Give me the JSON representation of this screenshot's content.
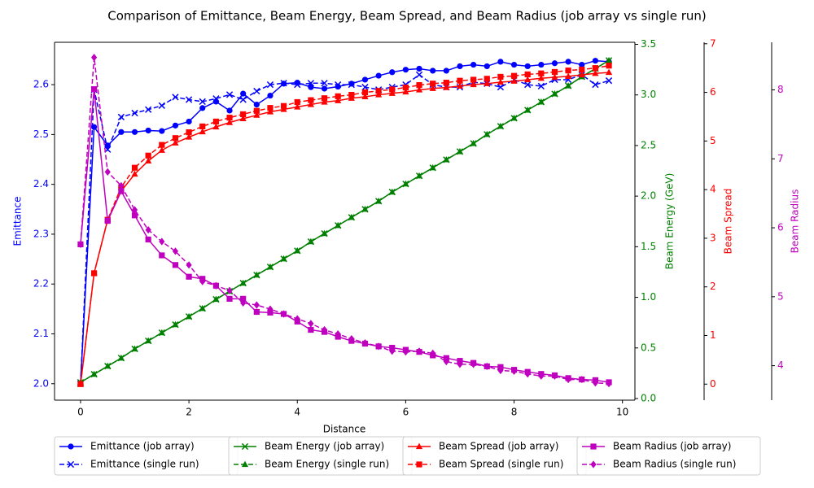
{
  "chart_data": {
    "type": "line",
    "title": "Comparison of Emittance, Beam Energy, Beam Spread, and Beam Radius (job array vs single run)",
    "xlabel": "Distance",
    "ylabel": "Emittance",
    "y2label": "Beam Energy (GeV)",
    "y3label": "Beam Spread",
    "y4label": "Beam Radius",
    "x": [
      0,
      0.25,
      0.5,
      0.75,
      1,
      1.25,
      1.5,
      1.75,
      2,
      2.25,
      2.5,
      2.75,
      3,
      3.25,
      3.5,
      3.75,
      4,
      4.25,
      4.5,
      4.75,
      5,
      5.25,
      5.5,
      5.75,
      6,
      6.25,
      6.5,
      6.75,
      7,
      7.25,
      7.5,
      7.75,
      8,
      8.25,
      8.5,
      8.75,
      9,
      9.25,
      9.5,
      9.75
    ],
    "xlim": [
      -0.48,
      10.23
    ],
    "xticks": [
      0,
      2,
      4,
      6,
      8,
      10
    ],
    "ylim": [
      1.967,
      2.685
    ],
    "yticks": [
      {
        "value": 2,
        "label": "2.0"
      },
      2.1,
      2.2,
      2.3,
      2.4,
      2.5,
      2.6
    ],
    "y2lim": [
      -0.016,
      3.52
    ],
    "y2ticks": [
      {
        "value": 0,
        "label": "0.0"
      },
      0.5,
      {
        "value": 1,
        "label": "1.0"
      },
      1.5,
      {
        "value": 2,
        "label": "2.0"
      },
      2.5,
      {
        "value": 3,
        "label": "3.0"
      },
      3.5
    ],
    "y3lim": [
      -0.33,
      7.03
    ],
    "y3ticks": [
      0,
      1,
      2,
      3,
      4,
      5,
      6,
      7
    ],
    "y4lim": [
      3.5,
      8.69
    ],
    "y4ticks": [
      4,
      5,
      6,
      7,
      8
    ],
    "legend": "lower center",
    "series": [
      {
        "name": "Emittance (job array)",
        "color": "#0000ff",
        "axis": "y",
        "marker": "o",
        "linestyle": "solid",
        "values": [
          2.0,
          2.515,
          2.478,
          2.505,
          2.505,
          2.508,
          2.507,
          2.518,
          2.526,
          2.553,
          2.566,
          2.548,
          2.582,
          2.56,
          2.578,
          2.602,
          2.604,
          2.595,
          2.592,
          2.596,
          2.602,
          2.61,
          2.618,
          2.625,
          2.63,
          2.632,
          2.628,
          2.628,
          2.637,
          2.64,
          2.637,
          2.646,
          2.64,
          2.637,
          2.64,
          2.643,
          2.646,
          2.64,
          2.648,
          2.646
        ]
      },
      {
        "name": "Emittance (single run)",
        "color": "#0000ff",
        "axis": "y",
        "marker": "x",
        "linestyle": "dashed",
        "values": [
          2.0,
          2.59,
          2.47,
          2.535,
          2.543,
          2.55,
          2.558,
          2.575,
          2.57,
          2.566,
          2.572,
          2.58,
          2.57,
          2.587,
          2.6,
          2.603,
          2.6,
          2.603,
          2.603,
          2.6,
          2.6,
          2.595,
          2.59,
          2.595,
          2.6,
          2.62,
          2.6,
          2.595,
          2.595,
          2.605,
          2.602,
          2.595,
          2.61,
          2.6,
          2.597,
          2.61,
          2.61,
          2.62,
          2.6,
          2.608
        ]
      },
      {
        "name": "Beam Energy (job array)",
        "color": "#008000",
        "axis": "y2",
        "marker": "x",
        "linestyle": "solid",
        "values": [
          0.16,
          0.24,
          0.32,
          0.4,
          0.49,
          0.57,
          0.65,
          0.73,
          0.81,
          0.89,
          0.98,
          1.06,
          1.14,
          1.22,
          1.3,
          1.38,
          1.46,
          1.55,
          1.63,
          1.71,
          1.79,
          1.87,
          1.95,
          2.04,
          2.12,
          2.2,
          2.28,
          2.36,
          2.44,
          2.52,
          2.61,
          2.69,
          2.77,
          2.85,
          2.93,
          3.01,
          3.09,
          3.18,
          3.26,
          3.34
        ]
      },
      {
        "name": "Beam Energy (single run)",
        "color": "#008000",
        "axis": "y2",
        "marker": "^",
        "linestyle": "dashed",
        "values": [
          0.16,
          0.24,
          0.32,
          0.4,
          0.49,
          0.57,
          0.65,
          0.73,
          0.81,
          0.89,
          0.98,
          1.06,
          1.14,
          1.22,
          1.3,
          1.38,
          1.46,
          1.55,
          1.63,
          1.71,
          1.79,
          1.87,
          1.95,
          2.04,
          2.12,
          2.2,
          2.28,
          2.36,
          2.44,
          2.52,
          2.61,
          2.69,
          2.77,
          2.85,
          2.93,
          3.01,
          3.09,
          3.18,
          3.26,
          3.34
        ]
      },
      {
        "name": "Beam Spread (job array)",
        "color": "#ff0000",
        "axis": "y3",
        "marker": "^",
        "linestyle": "solid",
        "values": [
          0,
          2.28,
          3.38,
          3.97,
          4.32,
          4.59,
          4.81,
          4.96,
          5.08,
          5.19,
          5.29,
          5.38,
          5.46,
          5.53,
          5.6,
          5.65,
          5.7,
          5.75,
          5.8,
          5.83,
          5.88,
          5.91,
          5.95,
          5.98,
          6.01,
          6.05,
          6.08,
          6.1,
          6.13,
          6.16,
          6.18,
          6.21,
          6.23,
          6.26,
          6.29,
          6.31,
          6.33,
          6.36,
          6.39,
          6.41
        ]
      },
      {
        "name": "Beam Spread (single run)",
        "color": "#ff0000",
        "axis": "y3",
        "marker": "s",
        "linestyle": "dashed",
        "values": [
          0,
          2.28,
          3.38,
          4.05,
          4.45,
          4.7,
          4.92,
          5.06,
          5.18,
          5.3,
          5.4,
          5.48,
          5.55,
          5.62,
          5.68,
          5.72,
          5.8,
          5.84,
          5.88,
          5.92,
          5.95,
          6.0,
          6.03,
          6.06,
          6.1,
          6.15,
          6.18,
          6.2,
          6.24,
          6.26,
          6.28,
          6.32,
          6.34,
          6.37,
          6.39,
          6.42,
          6.45,
          6.47,
          6.5,
          6.55
        ]
      },
      {
        "name": "Beam Radius (job array)",
        "color": "#bf00bf",
        "axis": "y4",
        "marker": "s",
        "linestyle": "solid",
        "values": [
          5.76,
          8.01,
          6.1,
          6.53,
          6.18,
          5.83,
          5.6,
          5.46,
          5.29,
          5.26,
          5.16,
          4.97,
          4.97,
          4.78,
          4.77,
          4.75,
          4.64,
          4.52,
          4.49,
          4.42,
          4.36,
          4.32,
          4.28,
          4.26,
          4.23,
          4.2,
          4.15,
          4.11,
          4.07,
          4.04,
          3.99,
          3.98,
          3.94,
          3.91,
          3.88,
          3.86,
          3.82,
          3.8,
          3.79,
          3.76
        ]
      },
      {
        "name": "Beam Radius (single run)",
        "color": "#bf00bf",
        "axis": "y4",
        "marker": "D",
        "linestyle": "dashed",
        "values": [
          5.76,
          8.47,
          6.81,
          6.61,
          6.26,
          5.97,
          5.8,
          5.66,
          5.46,
          5.22,
          5.16,
          5.09,
          4.91,
          4.88,
          4.82,
          4.75,
          4.68,
          4.61,
          4.52,
          4.46,
          4.39,
          4.33,
          4.28,
          4.21,
          4.2,
          4.21,
          4.18,
          4.06,
          4.02,
          4.02,
          3.99,
          3.93,
          3.92,
          3.88,
          3.85,
          3.85,
          3.8,
          3.8,
          3.75,
          3.74
        ]
      }
    ]
  }
}
